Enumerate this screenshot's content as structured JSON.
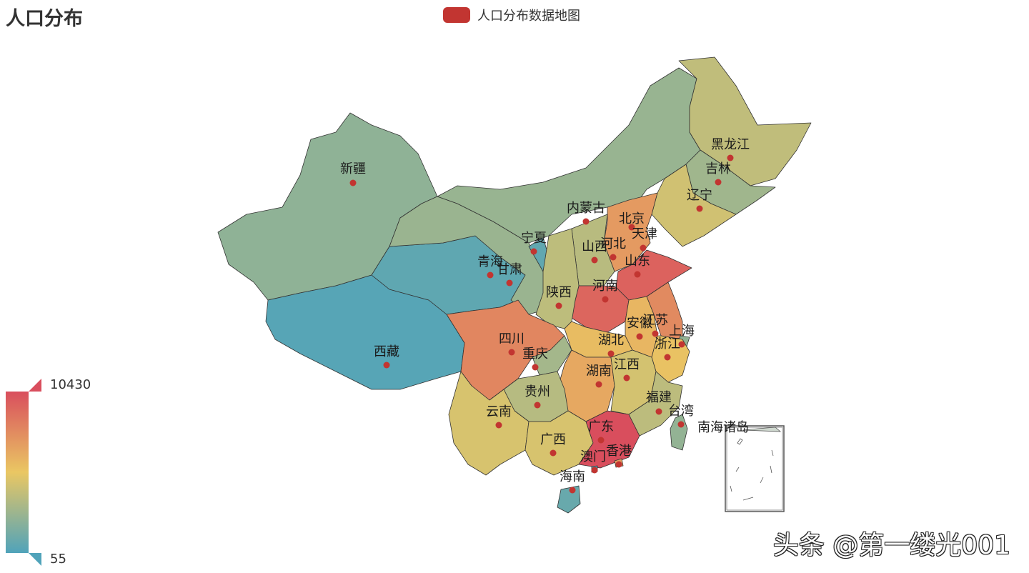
{
  "title": "人口分布",
  "legend": {
    "label": "人口分布数据地图",
    "color": "#c23531"
  },
  "visual_map": {
    "max_label": "10430",
    "min_label": "55",
    "max": 10430,
    "min": 55,
    "colors": [
      "#50a3ba",
      "#eac763",
      "#d94e5d"
    ]
  },
  "inset_label": "南海诸岛",
  "watermark": "头条 @第一缕光001",
  "chart_data": {
    "type": "map",
    "series": [
      {
        "name": "人口分布数据地图",
        "data": [
          {
            "name": "新疆",
            "value": 2181
          },
          {
            "name": "西藏",
            "value": 300
          },
          {
            "name": "青海",
            "value": 563
          },
          {
            "name": "甘肃",
            "value": 2558
          },
          {
            "name": "宁夏",
            "value": 630
          },
          {
            "name": "内蒙古",
            "value": 2471
          },
          {
            "name": "黑龙江",
            "value": 3831
          },
          {
            "name": "吉林",
            "value": 2746
          },
          {
            "name": "辽宁",
            "value": 4374
          },
          {
            "name": "北京",
            "value": 1961
          },
          {
            "name": "天津",
            "value": 1294
          },
          {
            "name": "河北",
            "value": 7185
          },
          {
            "name": "山西",
            "value": 3571
          },
          {
            "name": "山东",
            "value": 9579
          },
          {
            "name": "河南",
            "value": 9402
          },
          {
            "name": "陕西",
            "value": 3733
          },
          {
            "name": "四川",
            "value": 8042
          },
          {
            "name": "重庆",
            "value": 2885
          },
          {
            "name": "湖北",
            "value": 5724
          },
          {
            "name": "安徽",
            "value": 5950
          },
          {
            "name": "江苏",
            "value": 7866
          },
          {
            "name": "上海",
            "value": 2302
          },
          {
            "name": "浙江",
            "value": 5443
          },
          {
            "name": "湖南",
            "value": 6568
          },
          {
            "name": "江西",
            "value": 4457
          },
          {
            "name": "贵州",
            "value": 3475
          },
          {
            "name": "云南",
            "value": 4597
          },
          {
            "name": "广西",
            "value": 4603
          },
          {
            "name": "广东",
            "value": 10430
          },
          {
            "name": "福建",
            "value": 3689
          },
          {
            "name": "台湾",
            "value": 2316
          },
          {
            "name": "香港",
            "value": 7000
          },
          {
            "name": "澳门",
            "value": 55
          },
          {
            "name": "海南",
            "value": 867
          }
        ]
      }
    ]
  }
}
